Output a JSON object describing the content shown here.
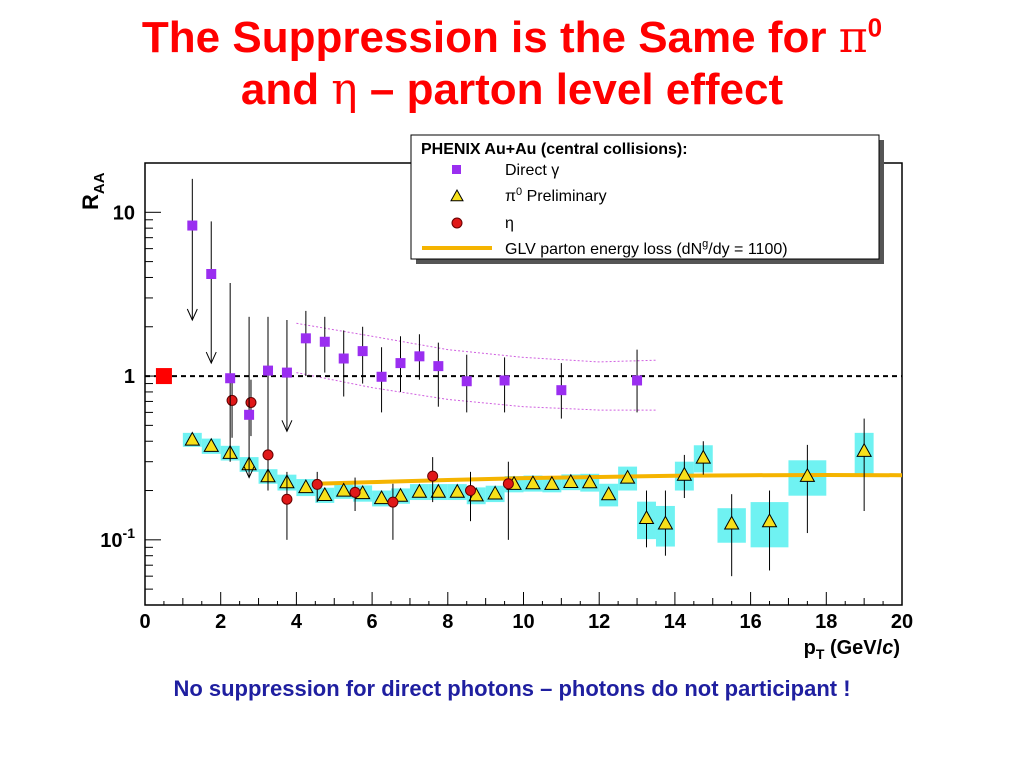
{
  "slide": {
    "title_line1_prefix": "The Suppression is the Same for ",
    "title_line1_pi": "π",
    "title_line1_sup": "0",
    "title_line2_prefix": "and ",
    "title_line2_eta": "η",
    "title_line2_suffix": " – parton level effect",
    "caption": "No suppression for direct photons – photons do not participant !"
  },
  "colors": {
    "title": "#ff0000",
    "caption": "#1f1fa0",
    "direct_gamma": "#9a2ef0",
    "pi0": "#f7e01a",
    "pi0_band": "#56f0f0",
    "eta": "#e01818",
    "glv": "#f5b400",
    "unity_marker": "#ff0000"
  },
  "chart_data": {
    "type": "scatter",
    "xlabel": "p_T (GeV/c)",
    "ylabel": "R_AA",
    "xlim": [
      0,
      20
    ],
    "ylim": [
      0.04,
      20
    ],
    "log_y": true,
    "xticks": [
      "0",
      "2",
      "4",
      "6",
      "8",
      "10",
      "12",
      "14",
      "16",
      "18",
      "20"
    ],
    "yticks": [
      "10",
      "1",
      "10-1"
    ],
    "legend": {
      "placement": "top-right",
      "header": "PHENIX Au+Au (central collisions):",
      "entries": [
        "Direct γ",
        "π0 Preliminary",
        "η",
        "GLV parton energy loss (dNg/dy = 1100)"
      ]
    },
    "series": [
      {
        "name": "Direct γ",
        "marker": "square",
        "points": [
          {
            "x": 1.25,
            "y": 8.3,
            "hi": 16,
            "lo": 2.2,
            "upper_limit": true
          },
          {
            "x": 1.75,
            "y": 4.2,
            "hi": 8.8,
            "lo": 1.2,
            "upper_limit": true
          },
          {
            "x": 2.25,
            "y": 0.97,
            "hi": 3.7,
            "lo": 0.3
          },
          {
            "x": 2.75,
            "y": 0.58,
            "hi": 2.3,
            "lo": 0.24,
            "upper_limit": true
          },
          {
            "x": 3.25,
            "y": 1.08,
            "hi": 2.3,
            "lo": 0.45
          },
          {
            "x": 3.75,
            "y": 1.05,
            "hi": 2.2,
            "lo": 0.46,
            "upper_limit": true
          },
          {
            "x": 4.25,
            "y": 1.7,
            "hi": 2.5,
            "lo": 1.0
          },
          {
            "x": 4.75,
            "y": 1.62,
            "hi": 2.3,
            "lo": 1.05
          },
          {
            "x": 5.25,
            "y": 1.28,
            "hi": 1.9,
            "lo": 0.75
          },
          {
            "x": 5.75,
            "y": 1.42,
            "hi": 2.0,
            "lo": 0.9
          },
          {
            "x": 6.25,
            "y": 0.99,
            "hi": 1.5,
            "lo": 0.6
          },
          {
            "x": 6.75,
            "y": 1.2,
            "hi": 1.75,
            "lo": 0.8
          },
          {
            "x": 7.25,
            "y": 1.32,
            "hi": 1.8,
            "lo": 0.95
          },
          {
            "x": 7.75,
            "y": 1.15,
            "hi": 1.6,
            "lo": 0.65
          },
          {
            "x": 8.5,
            "y": 0.93,
            "hi": 1.35,
            "lo": 0.6
          },
          {
            "x": 9.5,
            "y": 0.94,
            "hi": 1.3,
            "lo": 0.6
          },
          {
            "x": 11.0,
            "y": 0.82,
            "hi": 1.2,
            "lo": 0.55
          },
          {
            "x": 13.0,
            "y": 0.94,
            "hi": 1.45,
            "lo": 0.6
          }
        ],
        "sys_upper": [
          [
            4.0,
            2.1
          ],
          [
            6.0,
            1.75
          ],
          [
            8.0,
            1.45
          ],
          [
            10.0,
            1.3
          ],
          [
            12.0,
            1.22
          ],
          [
            13.5,
            1.25
          ]
        ],
        "sys_lower": [
          [
            4.0,
            1.05
          ],
          [
            6.0,
            0.85
          ],
          [
            8.0,
            0.72
          ],
          [
            10.0,
            0.65
          ],
          [
            12.0,
            0.62
          ],
          [
            13.5,
            0.62
          ]
        ]
      },
      {
        "name": "π0 Preliminary",
        "marker": "triangle",
        "points": [
          {
            "x": 1.25,
            "y": 0.41,
            "band": 0.04
          },
          {
            "x": 1.75,
            "y": 0.375,
            "band": 0.04
          },
          {
            "x": 2.25,
            "y": 0.34,
            "band": 0.035
          },
          {
            "x": 2.75,
            "y": 0.29,
            "band": 0.03
          },
          {
            "x": 3.25,
            "y": 0.245,
            "band": 0.025
          },
          {
            "x": 3.75,
            "y": 0.225,
            "band": 0.025
          },
          {
            "x": 4.25,
            "y": 0.21,
            "band": 0.025
          },
          {
            "x": 4.75,
            "y": 0.188,
            "band": 0.02
          },
          {
            "x": 5.25,
            "y": 0.2,
            "band": 0.022
          },
          {
            "x": 5.75,
            "y": 0.193,
            "band": 0.022
          },
          {
            "x": 6.25,
            "y": 0.18,
            "band": 0.02
          },
          {
            "x": 6.75,
            "y": 0.186,
            "band": 0.02
          },
          {
            "x": 7.25,
            "y": 0.197,
            "band": 0.022
          },
          {
            "x": 7.75,
            "y": 0.197,
            "band": 0.022
          },
          {
            "x": 8.25,
            "y": 0.197,
            "band": 0.022
          },
          {
            "x": 8.75,
            "y": 0.187,
            "band": 0.022
          },
          {
            "x": 9.25,
            "y": 0.192,
            "band": 0.022
          },
          {
            "x": 9.75,
            "y": 0.22,
            "band": 0.025
          },
          {
            "x": 10.25,
            "y": 0.222,
            "band": 0.025
          },
          {
            "x": 10.75,
            "y": 0.22,
            "band": 0.025
          },
          {
            "x": 11.25,
            "y": 0.226,
            "band": 0.025
          },
          {
            "x": 11.75,
            "y": 0.225,
            "band": 0.028
          },
          {
            "x": 12.25,
            "y": 0.19,
            "band": 0.03
          },
          {
            "x": 12.75,
            "y": 0.24,
            "band": 0.04
          },
          {
            "x": 13.25,
            "y": 0.136,
            "band": 0.035,
            "hi": 0.2,
            "lo": 0.09
          },
          {
            "x": 13.75,
            "y": 0.126,
            "band": 0.035,
            "hi": 0.2,
            "lo": 0.08
          },
          {
            "x": 14.25,
            "y": 0.25,
            "band": 0.05,
            "hi": 0.33,
            "lo": 0.18
          },
          {
            "x": 14.75,
            "y": 0.318,
            "band": 0.06,
            "hi": 0.4,
            "lo": 0.25
          },
          {
            "x": 15.5,
            "y": 0.126,
            "band": 0.03,
            "hi": 0.19,
            "lo": 0.06
          },
          {
            "x": 16.5,
            "y": 0.13,
            "band": 0.04,
            "hi": 0.2,
            "lo": 0.065
          },
          {
            "x": 17.5,
            "y": 0.246,
            "band": 0.06,
            "hi": 0.38,
            "lo": 0.11
          },
          {
            "x": 19.0,
            "y": 0.35,
            "band": 0.1,
            "hi": 0.55,
            "lo": 0.15
          }
        ]
      },
      {
        "name": "η",
        "marker": "circle",
        "points": [
          {
            "x": 2.3,
            "y": 0.71,
            "hi": 1.0,
            "lo": 0.42
          },
          {
            "x": 2.8,
            "y": 0.69,
            "hi": 0.95,
            "lo": 0.43
          },
          {
            "x": 3.25,
            "y": 0.33,
            "hi": 0.5,
            "lo": 0.2
          },
          {
            "x": 3.75,
            "y": 0.177,
            "hi": 0.26,
            "lo": 0.1
          },
          {
            "x": 4.55,
            "y": 0.218,
            "hi": 0.26,
            "lo": 0.17
          },
          {
            "x": 5.55,
            "y": 0.195,
            "hi": 0.24,
            "lo": 0.15
          },
          {
            "x": 6.55,
            "y": 0.17,
            "hi": 0.22,
            "lo": 0.1
          },
          {
            "x": 7.6,
            "y": 0.245,
            "hi": 0.32,
            "lo": 0.17
          },
          {
            "x": 8.6,
            "y": 0.2,
            "hi": 0.26,
            "lo": 0.13
          },
          {
            "x": 9.6,
            "y": 0.22,
            "hi": 0.3,
            "lo": 0.1
          }
        ]
      },
      {
        "name": "GLV parton energy loss (dNg/dy = 1100)",
        "type": "line",
        "x": [
          4.5,
          6,
          8,
          10,
          12,
          14,
          16,
          18,
          20
        ],
        "values": [
          0.22,
          0.225,
          0.232,
          0.238,
          0.242,
          0.246,
          0.248,
          0.249,
          0.248
        ]
      }
    ],
    "reference_line": {
      "y": 1,
      "style": "dashed"
    },
    "reference_marker": {
      "x": 0.5,
      "y": 1,
      "marker": "square"
    }
  }
}
